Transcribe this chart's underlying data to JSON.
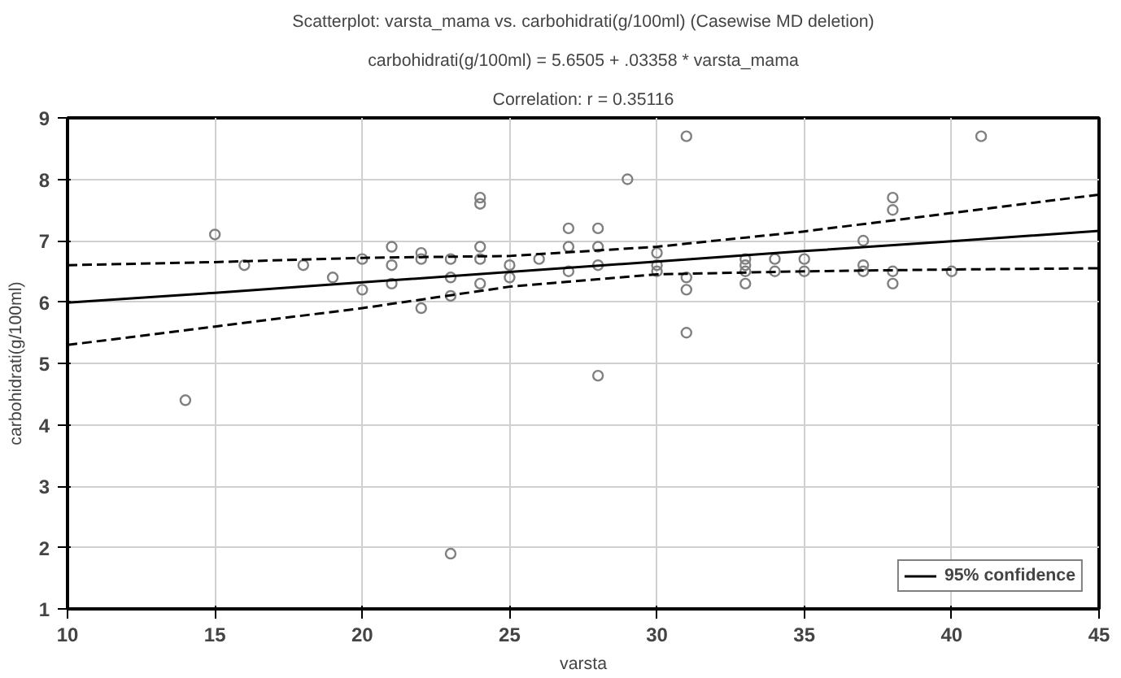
{
  "chart_data": {
    "type": "scatter",
    "title": "Scatterplot: varsta_mama vs. carbohidrati(g/100ml) (Casewise MD deletion)",
    "subtitle": "carbohidrati(g/100ml) = 5.6505 + .03358 * varsta_mama",
    "annotations": [
      "Correlation: r = 0.35116"
    ],
    "xlabel": "varsta",
    "ylabel": "carbohidrati(g/100ml)",
    "xlim": [
      10,
      45
    ],
    "ylim": [
      1,
      9
    ],
    "xticks": [
      10,
      15,
      20,
      25,
      30,
      35,
      40,
      45
    ],
    "yticks": [
      1,
      2,
      3,
      4,
      5,
      6,
      7,
      8,
      9
    ],
    "grid": true,
    "legend": "bottom right",
    "marker": "circle",
    "series": [
      {
        "color": "#808080",
        "x": [
          14,
          15,
          16,
          18,
          19,
          20,
          20,
          21,
          21,
          21,
          22,
          22,
          22,
          23,
          23,
          23,
          23,
          24,
          24,
          24,
          24,
          24,
          25,
          25,
          26,
          27,
          27,
          27,
          28,
          28,
          28,
          28,
          29,
          30,
          30,
          30,
          31,
          31,
          31,
          31,
          33,
          33,
          33,
          33,
          34,
          34,
          35,
          35,
          37,
          37,
          37,
          38,
          38,
          38,
          38,
          40,
          41
        ],
        "values": [
          4.4,
          7.1,
          6.6,
          6.6,
          6.4,
          6.7,
          6.2,
          6.9,
          6.6,
          6.3,
          6.8,
          6.7,
          5.9,
          6.7,
          6.4,
          6.1,
          1.9,
          7.7,
          7.6,
          6.9,
          6.7,
          6.3,
          6.6,
          6.4,
          6.7,
          7.2,
          6.9,
          6.5,
          7.2,
          6.9,
          4.8,
          6.6,
          8.0,
          6.8,
          6.6,
          6.5,
          8.7,
          6.4,
          6.2,
          5.5,
          6.7,
          6.5,
          6.3,
          6.6,
          6.7,
          6.5,
          6.7,
          6.5,
          7.0,
          6.6,
          6.5,
          7.7,
          7.5,
          6.5,
          6.3,
          6.5,
          8.7
        ]
      },
      {
        "type": "line",
        "name": "95% confidence",
        "color": "#000000",
        "marker": "none",
        "x": [
          10,
          15,
          20,
          25,
          30,
          35,
          40,
          45
        ],
        "values": [
          5.99,
          6.15,
          6.32,
          6.49,
          6.66,
          6.83,
          6.99,
          7.16
        ]
      },
      {
        "type": "line",
        "color": "#000000",
        "marker": "none",
        "line_style": "dashed",
        "x": [
          10,
          15,
          20,
          25,
          30,
          35,
          40,
          45
        ],
        "values": [
          5.3,
          5.6,
          5.9,
          6.25,
          6.45,
          6.5,
          6.53,
          6.55
        ]
      },
      {
        "type": "line",
        "color": "#000000",
        "marker": "none",
        "line_style": "dashed",
        "x": [
          10,
          15,
          20,
          25,
          30,
          35,
          40,
          45
        ],
        "values": [
          6.6,
          6.65,
          6.72,
          6.75,
          6.9,
          7.15,
          7.45,
          7.75
        ]
      }
    ]
  }
}
